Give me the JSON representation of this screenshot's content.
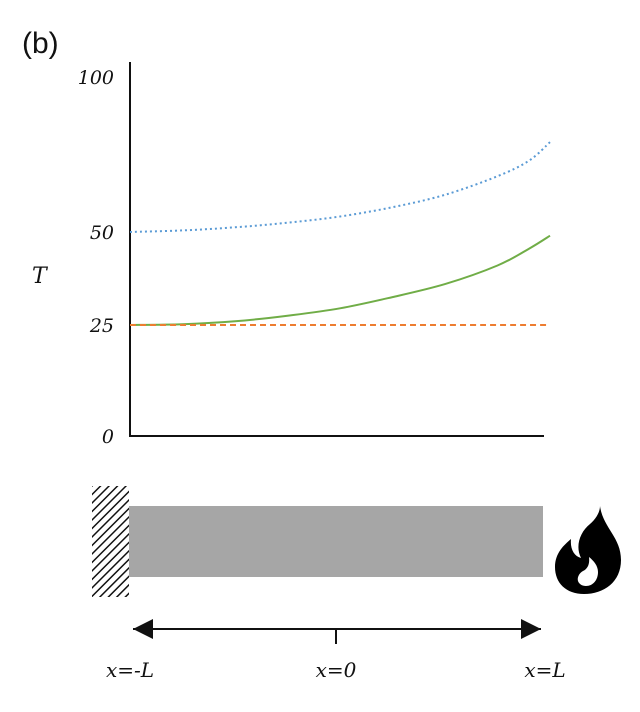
{
  "panel_label": "(b)",
  "chart_data": {
    "type": "line",
    "ylabel": "T",
    "xlabel": "",
    "yticks": [
      0,
      25,
      50,
      100
    ],
    "ylim": [
      0,
      100
    ],
    "y_scale_note": "non-uniform axis: 0, 25, 50, 100 tick spacing",
    "x_ticks": [
      "x=-L",
      "x=0",
      "x=L"
    ],
    "x": [
      -1,
      -0.75,
      -0.5,
      -0.25,
      0,
      0.25,
      0.5,
      0.75,
      0.9,
      1
    ],
    "series": [
      {
        "color": "#5b9bd5",
        "style": "dotted",
        "values": [
          50,
          50.5,
          51.5,
          53,
          55,
          58,
          62,
          68,
          73,
          79
        ]
      },
      {
        "color": "#70ad47",
        "style": "solid",
        "values": [
          25,
          25.2,
          26,
          27.5,
          29.5,
          32.5,
          36,
          41,
          45.5,
          49
        ]
      },
      {
        "color": "#ed7d31",
        "style": "dashed",
        "values": [
          25,
          25,
          25,
          25,
          25,
          25,
          25,
          25,
          25,
          25
        ]
      }
    ],
    "grid": false
  },
  "icons": {
    "wall": "hatched-wall-icon",
    "fire": "fire-icon",
    "arrow": "double-arrow-icon"
  },
  "colors": {
    "rod": "#a6a6a6"
  }
}
